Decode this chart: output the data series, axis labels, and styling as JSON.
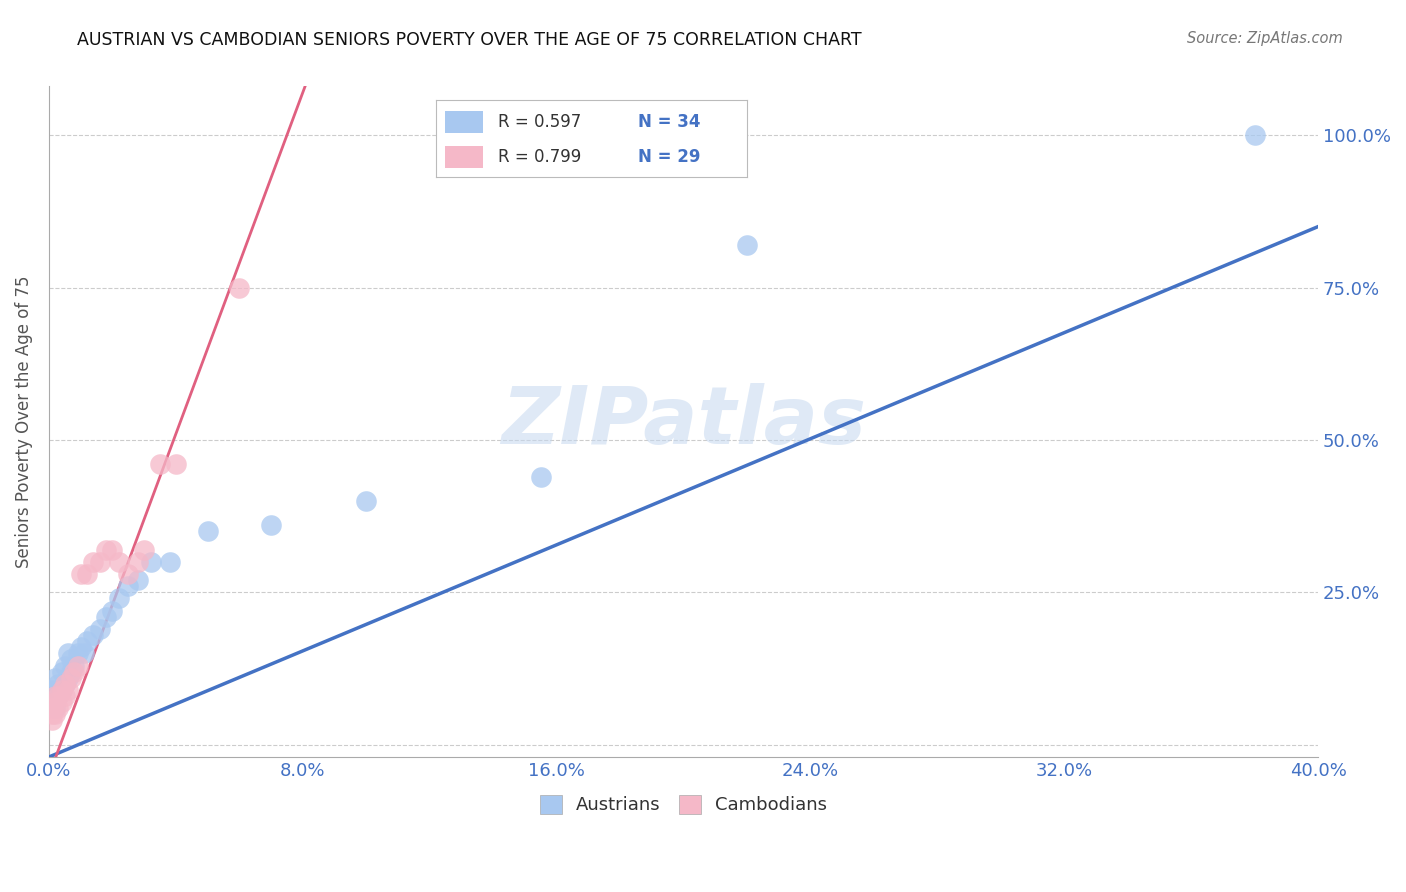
{
  "title": "AUSTRIAN VS CAMBODIAN SENIORS POVERTY OVER THE AGE OF 75 CORRELATION CHART",
  "source": "Source: ZipAtlas.com",
  "ylabel": "Seniors Poverty Over the Age of 75",
  "xlim": [
    0.0,
    0.4
  ],
  "ylim": [
    -0.02,
    1.08
  ],
  "xticks": [
    0.0,
    0.08,
    0.16,
    0.24,
    0.32,
    0.4
  ],
  "xtick_labels": [
    "0.0%",
    "8.0%",
    "16.0%",
    "24.0%",
    "32.0%",
    "40.0%"
  ],
  "yticks": [
    0.0,
    0.25,
    0.5,
    0.75,
    1.0
  ],
  "ytick_labels": [
    "",
    "25.0%",
    "50.0%",
    "75.0%",
    "100.0%"
  ],
  "austrians_x": [
    0.001,
    0.001,
    0.002,
    0.002,
    0.003,
    0.003,
    0.004,
    0.004,
    0.005,
    0.005,
    0.006,
    0.006,
    0.007,
    0.007,
    0.008,
    0.009,
    0.01,
    0.011,
    0.012,
    0.014,
    0.016,
    0.018,
    0.02,
    0.022,
    0.025,
    0.028,
    0.032,
    0.038,
    0.05,
    0.07,
    0.1,
    0.155,
    0.22,
    0.38
  ],
  "austrians_y": [
    0.07,
    0.09,
    0.06,
    0.11,
    0.08,
    0.1,
    0.09,
    0.12,
    0.1,
    0.13,
    0.11,
    0.15,
    0.12,
    0.14,
    0.13,
    0.15,
    0.16,
    0.15,
    0.17,
    0.18,
    0.19,
    0.21,
    0.22,
    0.24,
    0.26,
    0.27,
    0.3,
    0.3,
    0.35,
    0.36,
    0.4,
    0.44,
    0.82,
    1.0
  ],
  "cambodians_x": [
    0.001,
    0.001,
    0.001,
    0.002,
    0.002,
    0.002,
    0.003,
    0.003,
    0.004,
    0.004,
    0.005,
    0.005,
    0.006,
    0.007,
    0.008,
    0.009,
    0.01,
    0.012,
    0.014,
    0.016,
    0.018,
    0.02,
    0.022,
    0.025,
    0.028,
    0.03,
    0.035,
    0.04,
    0.06
  ],
  "cambodians_y": [
    0.04,
    0.05,
    0.06,
    0.05,
    0.07,
    0.08,
    0.06,
    0.08,
    0.07,
    0.09,
    0.08,
    0.1,
    0.09,
    0.11,
    0.12,
    0.13,
    0.28,
    0.28,
    0.3,
    0.3,
    0.32,
    0.32,
    0.3,
    0.28,
    0.3,
    0.32,
    0.46,
    0.46,
    0.75
  ],
  "blue_color": "#a8c8f0",
  "pink_color": "#f5b8c8",
  "blue_line_color": "#4472c4",
  "pink_line_color": "#e06080",
  "blue_r": "R = 0.597",
  "blue_n": "N = 34",
  "pink_r": "R = 0.799",
  "pink_n": "N = 29",
  "legend_label_austrians": "Austrians",
  "legend_label_cambodians": "Cambodians",
  "watermark": "ZIPatlas",
  "title_color": "#111111",
  "source_color": "#777777",
  "axis_label_color": "#555555",
  "right_tick_color": "#4472c4",
  "grid_color": "#cccccc",
  "background_color": "#ffffff",
  "figsize": [
    14.06,
    8.92
  ],
  "dpi": 100
}
